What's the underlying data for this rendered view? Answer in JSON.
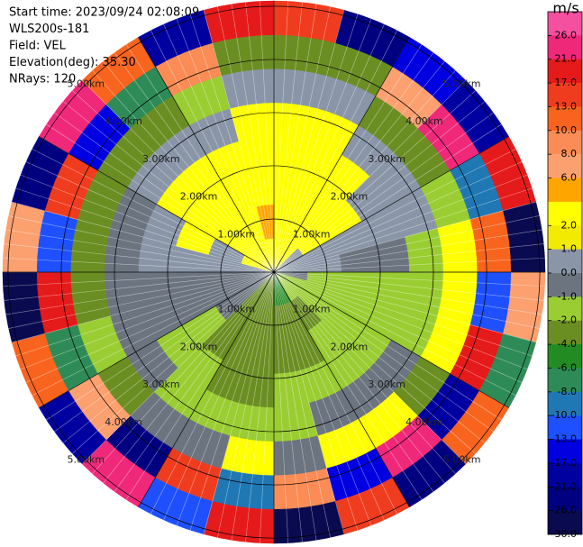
{
  "chart_data": {
    "type": "ppi",
    "header": [
      "Start time: 2023/09/24 02:08:09",
      "WLS200s-181",
      "Field: VEL",
      "Elevation(deg): 35.30",
      "NRays: 120"
    ],
    "rlim": [
      0,
      5.1
    ],
    "range_rings": [
      {
        "value": 1,
        "label": "1.00km"
      },
      {
        "value": 2,
        "label": "2.00km"
      },
      {
        "value": 3,
        "label": "3.00km"
      },
      {
        "value": 4,
        "label": "4.00km"
      },
      {
        "value": 5,
        "label": "5.00km"
      }
    ],
    "colorbar_title": "m/s",
    "clim": [
      -30,
      30
    ],
    "levels": [
      30,
      26,
      21,
      17,
      13,
      10,
      8,
      6,
      4,
      2,
      1,
      0,
      -1,
      -2,
      -4,
      -6,
      -8,
      -10,
      -13,
      -17,
      -21,
      -26,
      -30
    ],
    "colors": [
      "#f5509f",
      "#f0287a",
      "#e51a1a",
      "#f03c1e",
      "#f8641e",
      "#fb8c55",
      "#fca070",
      "#ffa500",
      "#ffff00",
      "#f2ea00",
      "#8a96a8",
      "#6c7480",
      "#9acd32",
      "#6b8e23",
      "#228b22",
      "#2e8b57",
      "#1f78b4",
      "#1e50ff",
      "#0000e0",
      "#0000a0",
      "#000080",
      "#0a0a50"
    ],
    "colorbar_ticks": [
      {
        "value": 26,
        "label": "26.0"
      },
      {
        "value": 21,
        "label": "21.0"
      },
      {
        "value": 17,
        "label": "17.0"
      },
      {
        "value": 13,
        "label": "13.0"
      },
      {
        "value": 10,
        "label": "10.0"
      },
      {
        "value": 8,
        "label": "8.0"
      },
      {
        "value": 6,
        "label": "6.0"
      },
      {
        "value": 2,
        "label": "2.0"
      },
      {
        "value": 1,
        "label": "1.0"
      },
      {
        "value": 0,
        "label": "0.0"
      },
      {
        "value": -1,
        "label": "-1.0"
      },
      {
        "value": -2,
        "label": "-2.0"
      },
      {
        "value": -4,
        "label": "-4.0"
      },
      {
        "value": -6,
        "label": "-6.0"
      },
      {
        "value": -8,
        "label": "-8.0"
      },
      {
        "value": -10,
        "label": "-10.0"
      },
      {
        "value": -13,
        "label": "-13.0"
      },
      {
        "value": -17,
        "label": "-17.0"
      },
      {
        "value": -21,
        "label": "-21.0"
      },
      {
        "value": -26,
        "label": "-26.0"
      },
      {
        "value": -30,
        "label": "-30.0"
      }
    ],
    "values": [
      [
        3,
        3,
        3,
        3,
        2.5,
        0.5,
        -3,
        17
      ],
      [
        3,
        3,
        3,
        3,
        2.5,
        0.5,
        -2.5,
        -21
      ],
      [
        3,
        3,
        3,
        3,
        0.5,
        -3,
        8,
        -13
      ],
      [
        0.5,
        3,
        3,
        0.5,
        0.5,
        -3,
        26,
        -17
      ],
      [
        0.5,
        0.5,
        0.5,
        0.5,
        0.5,
        -1.5,
        -8,
        21
      ],
      [
        0.5,
        0.5,
        -0.5,
        -0.5,
        -1.5,
        3,
        13,
        -26
      ],
      [
        -0.5,
        -1.5,
        -1.5,
        -1.5,
        -1.5,
        3,
        -10,
        8
      ],
      [
        -1.5,
        -1.5,
        -1.5,
        -1.5,
        -1.5,
        3,
        21,
        -6
      ],
      [
        -1.5,
        -1.5,
        -1.5,
        -1.5,
        -0.5,
        -3,
        -17,
        13
      ],
      [
        -1.5,
        -3,
        -1.5,
        -1.5,
        -0.5,
        3,
        26,
        -21
      ],
      [
        -5,
        -3,
        -3,
        -1.5,
        -0.5,
        3,
        -13,
        17
      ],
      [
        -5,
        -3,
        -3,
        -1.5,
        -1.5,
        -0.5,
        9,
        -26
      ],
      [
        -3,
        -3,
        -3,
        -3,
        -1.5,
        3,
        -8,
        21
      ],
      [
        -3,
        -3,
        -3,
        -3,
        -1.5,
        -0.5,
        15,
        -10
      ],
      [
        -3,
        -3,
        -3,
        -1.5,
        -1.5,
        -0.5,
        -21,
        26
      ],
      [
        -0.5,
        -0.5,
        -1.5,
        -1.5,
        -0.5,
        -3,
        8,
        -17
      ],
      [
        -0.5,
        -0.5,
        -0.5,
        -0.5,
        -0.5,
        -1.5,
        -6,
        13
      ],
      [
        -0.5,
        -0.5,
        -0.5,
        -0.5,
        -0.5,
        -3,
        21,
        -26
      ],
      [
        0.5,
        0.5,
        0.5,
        0.5,
        -0.5,
        -3,
        -10,
        8
      ],
      [
        3,
        0.5,
        3,
        0.5,
        -0.5,
        -3,
        17,
        -21
      ],
      [
        3,
        3,
        3,
        3,
        0.5,
        -3,
        -13,
        26
      ],
      [
        3,
        3,
        3,
        3,
        0.5,
        -3,
        -6,
        13
      ],
      [
        3,
        3,
        3,
        3,
        0.5,
        -1.5,
        9,
        -17
      ],
      [
        3,
        5,
        3,
        3,
        2.5,
        0.5,
        -3,
        21
      ]
    ]
  }
}
